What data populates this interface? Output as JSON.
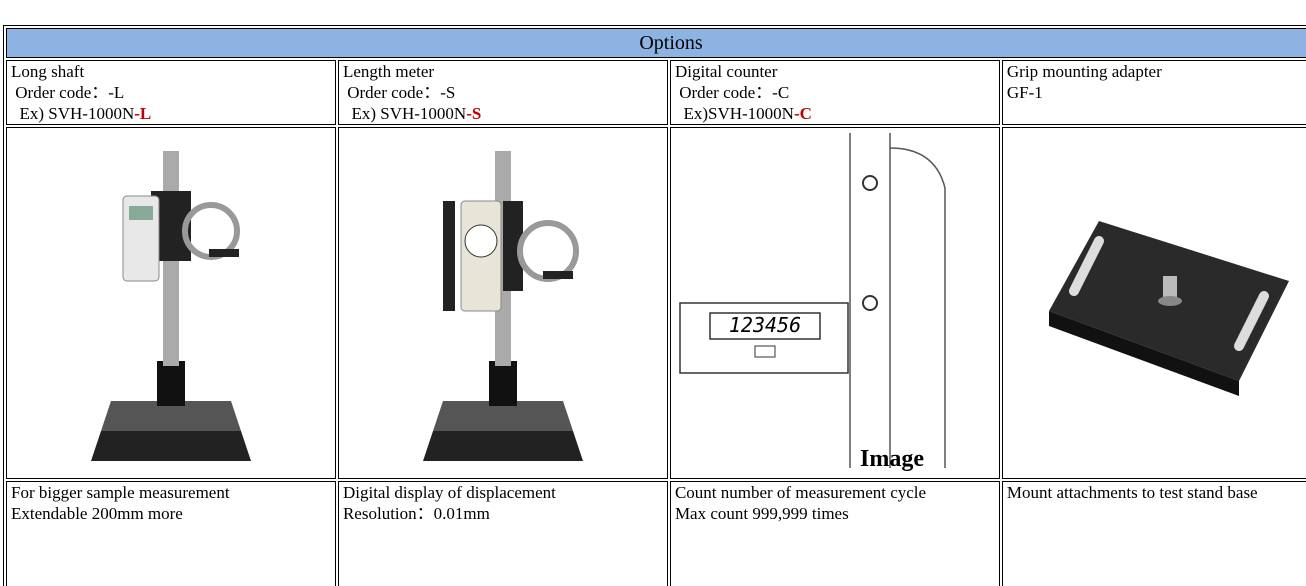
{
  "table": {
    "title": "Options",
    "columns": [
      {
        "name": "Long shaft",
        "code": " Order code：-L",
        "example": {
          "prefix": "  Ex) SVH-1000N",
          "suffix": "-L"
        },
        "description": [
          "For bigger sample measurement",
          "Extendable 200mm more"
        ]
      },
      {
        "name": "Length meter",
        "code": " Order code：-S",
        "example": {
          "prefix": "  Ex) SVH-1000N",
          "suffix": "-S"
        },
        "description": [
          "Digital display of displacement",
          "Resolution：0.01mm"
        ]
      },
      {
        "name": "Digital counter",
        "code": " Order code：-C",
        "example": {
          "prefix": "  Ex)SVH-1000N",
          "suffix": "-C"
        },
        "description": [
          "Count number of measurement cycle",
          "Max count 999,999 times"
        ]
      },
      {
        "name": "Grip mounting adapter",
        "code": "GF-1",
        "description": [
          "Mount attachments to test stand base"
        ]
      }
    ],
    "image_caption": "Image",
    "counter_display": "123456"
  }
}
